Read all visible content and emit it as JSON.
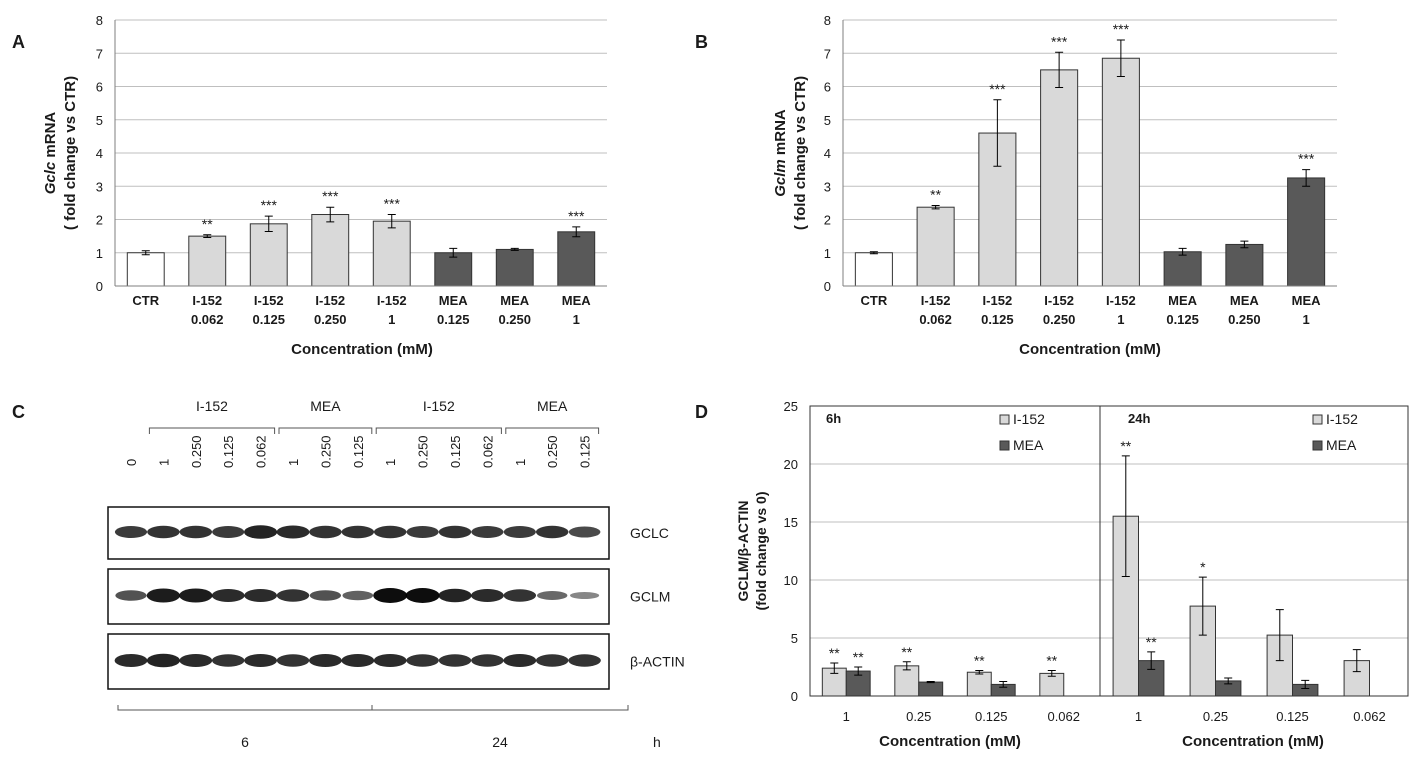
{
  "colors": {
    "white_bar": "#ffffff",
    "i152": "#d9d9d9",
    "mea": "#595959",
    "grid": "#bfbfbf",
    "axis": "#7f7f7f",
    "text": "#1a1a1a"
  },
  "chart_data": [
    {
      "panel": "A",
      "type": "bar",
      "ylabel_italic": "Gclc",
      "ylabel_rest": " mRNA",
      "ylabel_line2": "( fold change vs CTR)",
      "xlabel": "Concentration (mM)",
      "ylim": [
        0,
        8
      ],
      "yticks": [
        "0",
        "1",
        "2",
        "3",
        "4",
        "5",
        "6",
        "7",
        "8"
      ],
      "categories": [
        [
          "CTR",
          ""
        ],
        [
          "I-152",
          "0.062"
        ],
        [
          "I-152",
          "0.125"
        ],
        [
          "I-152",
          "0.250"
        ],
        [
          "I-152",
          "1"
        ],
        [
          "MEA",
          "0.125"
        ],
        [
          "MEA",
          "0.250"
        ],
        [
          "MEA",
          "1"
        ]
      ],
      "values": [
        1.0,
        1.5,
        1.87,
        2.15,
        1.95,
        1.0,
        1.1,
        1.63
      ],
      "errors": [
        0.06,
        0.04,
        0.23,
        0.22,
        0.2,
        0.13,
        0.03,
        0.15
      ],
      "groups": [
        "ctr",
        "i152",
        "i152",
        "i152",
        "i152",
        "mea",
        "mea",
        "mea"
      ],
      "significance": [
        "",
        "**",
        "***",
        "***",
        "***",
        "",
        "",
        "***"
      ]
    },
    {
      "panel": "B",
      "type": "bar",
      "ylabel_italic": "Gclm",
      "ylabel_rest": " mRNA",
      "ylabel_line2": "( fold change vs CTR)",
      "xlabel": "Concentration (mM)",
      "ylim": [
        0,
        8
      ],
      "yticks": [
        "0",
        "1",
        "2",
        "3",
        "4",
        "5",
        "6",
        "7",
        "8"
      ],
      "categories": [
        [
          "CTR",
          ""
        ],
        [
          "I-152",
          "0.062"
        ],
        [
          "I-152",
          "0.125"
        ],
        [
          "I-152",
          "0.250"
        ],
        [
          "I-152",
          "1"
        ],
        [
          "MEA",
          "0.125"
        ],
        [
          "MEA",
          "0.250"
        ],
        [
          "MEA",
          "1"
        ]
      ],
      "values": [
        1.0,
        2.37,
        4.6,
        6.5,
        6.85,
        1.03,
        1.25,
        3.25
      ],
      "errors": [
        0.03,
        0.05,
        1.0,
        0.53,
        0.55,
        0.1,
        0.1,
        0.25
      ],
      "groups": [
        "ctr",
        "i152",
        "i152",
        "i152",
        "i152",
        "mea",
        "mea",
        "mea"
      ],
      "significance": [
        "",
        "**",
        "***",
        "***",
        "***",
        "",
        "",
        "***"
      ]
    },
    {
      "panel": "D",
      "type": "bar",
      "ylabel_line1": "GCLM/β-ACTIN",
      "ylabel_line2": "(fold change vs 0)",
      "ylim": [
        0,
        25
      ],
      "yticks": [
        "0",
        "5",
        "10",
        "15",
        "20",
        "25"
      ],
      "series_names": [
        "I-152",
        "MEA"
      ],
      "subpanels": [
        {
          "title": "6h",
          "xlabel": "Concentration (mM)",
          "categories": [
            "1",
            "0.25",
            "0.125",
            "0.062"
          ],
          "series": [
            {
              "name": "I-152",
              "values": [
                2.4,
                2.6,
                2.05,
                1.95
              ],
              "errors": [
                0.45,
                0.35,
                0.15,
                0.25
              ],
              "significance": [
                "**",
                "**",
                "**",
                "**"
              ]
            },
            {
              "name": "MEA",
              "values": [
                2.15,
                1.2,
                1.0,
                null
              ],
              "errors": [
                0.35,
                0.05,
                0.25,
                null
              ],
              "significance": [
                "**",
                "",
                "",
                ""
              ]
            }
          ]
        },
        {
          "title": "24h",
          "xlabel": "Concentration (mM)",
          "categories": [
            "1",
            "0.25",
            "0.125",
            "0.062"
          ],
          "series": [
            {
              "name": "I-152",
              "values": [
                15.5,
                7.75,
                5.25,
                3.05
              ],
              "errors": [
                5.2,
                2.5,
                2.2,
                0.95
              ],
              "significance": [
                "**",
                "*",
                "",
                ""
              ]
            },
            {
              "name": "MEA",
              "values": [
                3.05,
                1.3,
                1.0,
                null
              ],
              "errors": [
                0.75,
                0.25,
                0.35,
                null
              ],
              "significance": [
                "**",
                "",
                "",
                ""
              ]
            }
          ]
        }
      ]
    }
  ],
  "blot": {
    "panel": "C",
    "group_labels": [
      "I-152",
      "MEA",
      "I-152",
      "MEA"
    ],
    "lane_labels": [
      "0",
      "1",
      "0.250",
      "0.125",
      "0.062",
      "1",
      "0.250",
      "0.125",
      "1",
      "0.250",
      "0.125",
      "0.062",
      "1",
      "0.250",
      "0.125"
    ],
    "rows": [
      {
        "label": "GCLC",
        "intensity": [
          0.7,
          0.75,
          0.75,
          0.7,
          0.85,
          0.8,
          0.75,
          0.75,
          0.75,
          0.7,
          0.75,
          0.7,
          0.7,
          0.75,
          0.6
        ]
      },
      {
        "label": "GCLM",
        "intensity": [
          0.55,
          0.9,
          0.9,
          0.8,
          0.8,
          0.75,
          0.55,
          0.45,
          1.0,
          1.0,
          0.85,
          0.8,
          0.75,
          0.4,
          0.2
        ]
      },
      {
        "label": "β-ACTIN",
        "intensity": [
          0.8,
          0.85,
          0.8,
          0.75,
          0.8,
          0.75,
          0.8,
          0.8,
          0.8,
          0.75,
          0.75,
          0.75,
          0.8,
          0.75,
          0.75
        ]
      }
    ],
    "time_labels": [
      "6",
      "24"
    ],
    "time_unit": "h"
  }
}
